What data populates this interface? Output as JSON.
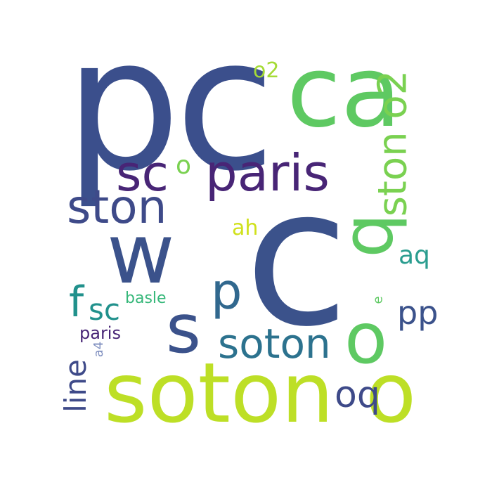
{
  "words": {
    "pc": {
      "text": "pc",
      "color": "#3b4f8c"
    },
    "ca": {
      "text": "ca",
      "color": "#5ec962"
    },
    "c": {
      "text": "c",
      "color": "#3b528b"
    },
    "w": {
      "text": "w",
      "color": "#3b528b"
    },
    "soton_large": {
      "text": "soton",
      "color": "#bddf26"
    },
    "o_large": {
      "text": "o",
      "color": "#bddf26"
    },
    "sc_1": {
      "text": "sc",
      "color": "#482576"
    },
    "o_small": {
      "text": "o",
      "color": "#7ad151"
    },
    "paris_1": {
      "text": "paris",
      "color": "#482576"
    },
    "ston_1": {
      "text": "ston",
      "color": "#3e4a89"
    },
    "ston_o2": {
      "text": "ston o2",
      "color": "#7ad151"
    },
    "q": {
      "text": "q",
      "color": "#5ec962"
    },
    "o2": {
      "text": "o2",
      "color": "#a5db36"
    },
    "ah": {
      "text": "ah",
      "color": "#d0e11c"
    },
    "aq": {
      "text": "aq",
      "color": "#2a9d8f"
    },
    "p": {
      "text": "p",
      "color": "#31688e"
    },
    "s": {
      "text": "s",
      "color": "#3b528b"
    },
    "soton_mid": {
      "text": "soton",
      "color": "#2c728e"
    },
    "o_mid": {
      "text": "o",
      "color": "#5ec962"
    },
    "pp": {
      "text": "pp",
      "color": "#3b528b"
    },
    "f": {
      "text": "f",
      "color": "#21918c"
    },
    "sc_2": {
      "text": "sc",
      "color": "#21918c"
    },
    "basle": {
      "text": "basle",
      "color": "#35b779"
    },
    "paris_2": {
      "text": "paris",
      "color": "#482576"
    },
    "a4": {
      "text": "a4",
      "color": "#7f8fbf"
    },
    "line": {
      "text": "line",
      "color": "#3e4a89"
    },
    "oq": {
      "text": "oq",
      "color": "#3e4a89"
    },
    "e": {
      "text": "e",
      "color": "#5ec962"
    }
  }
}
